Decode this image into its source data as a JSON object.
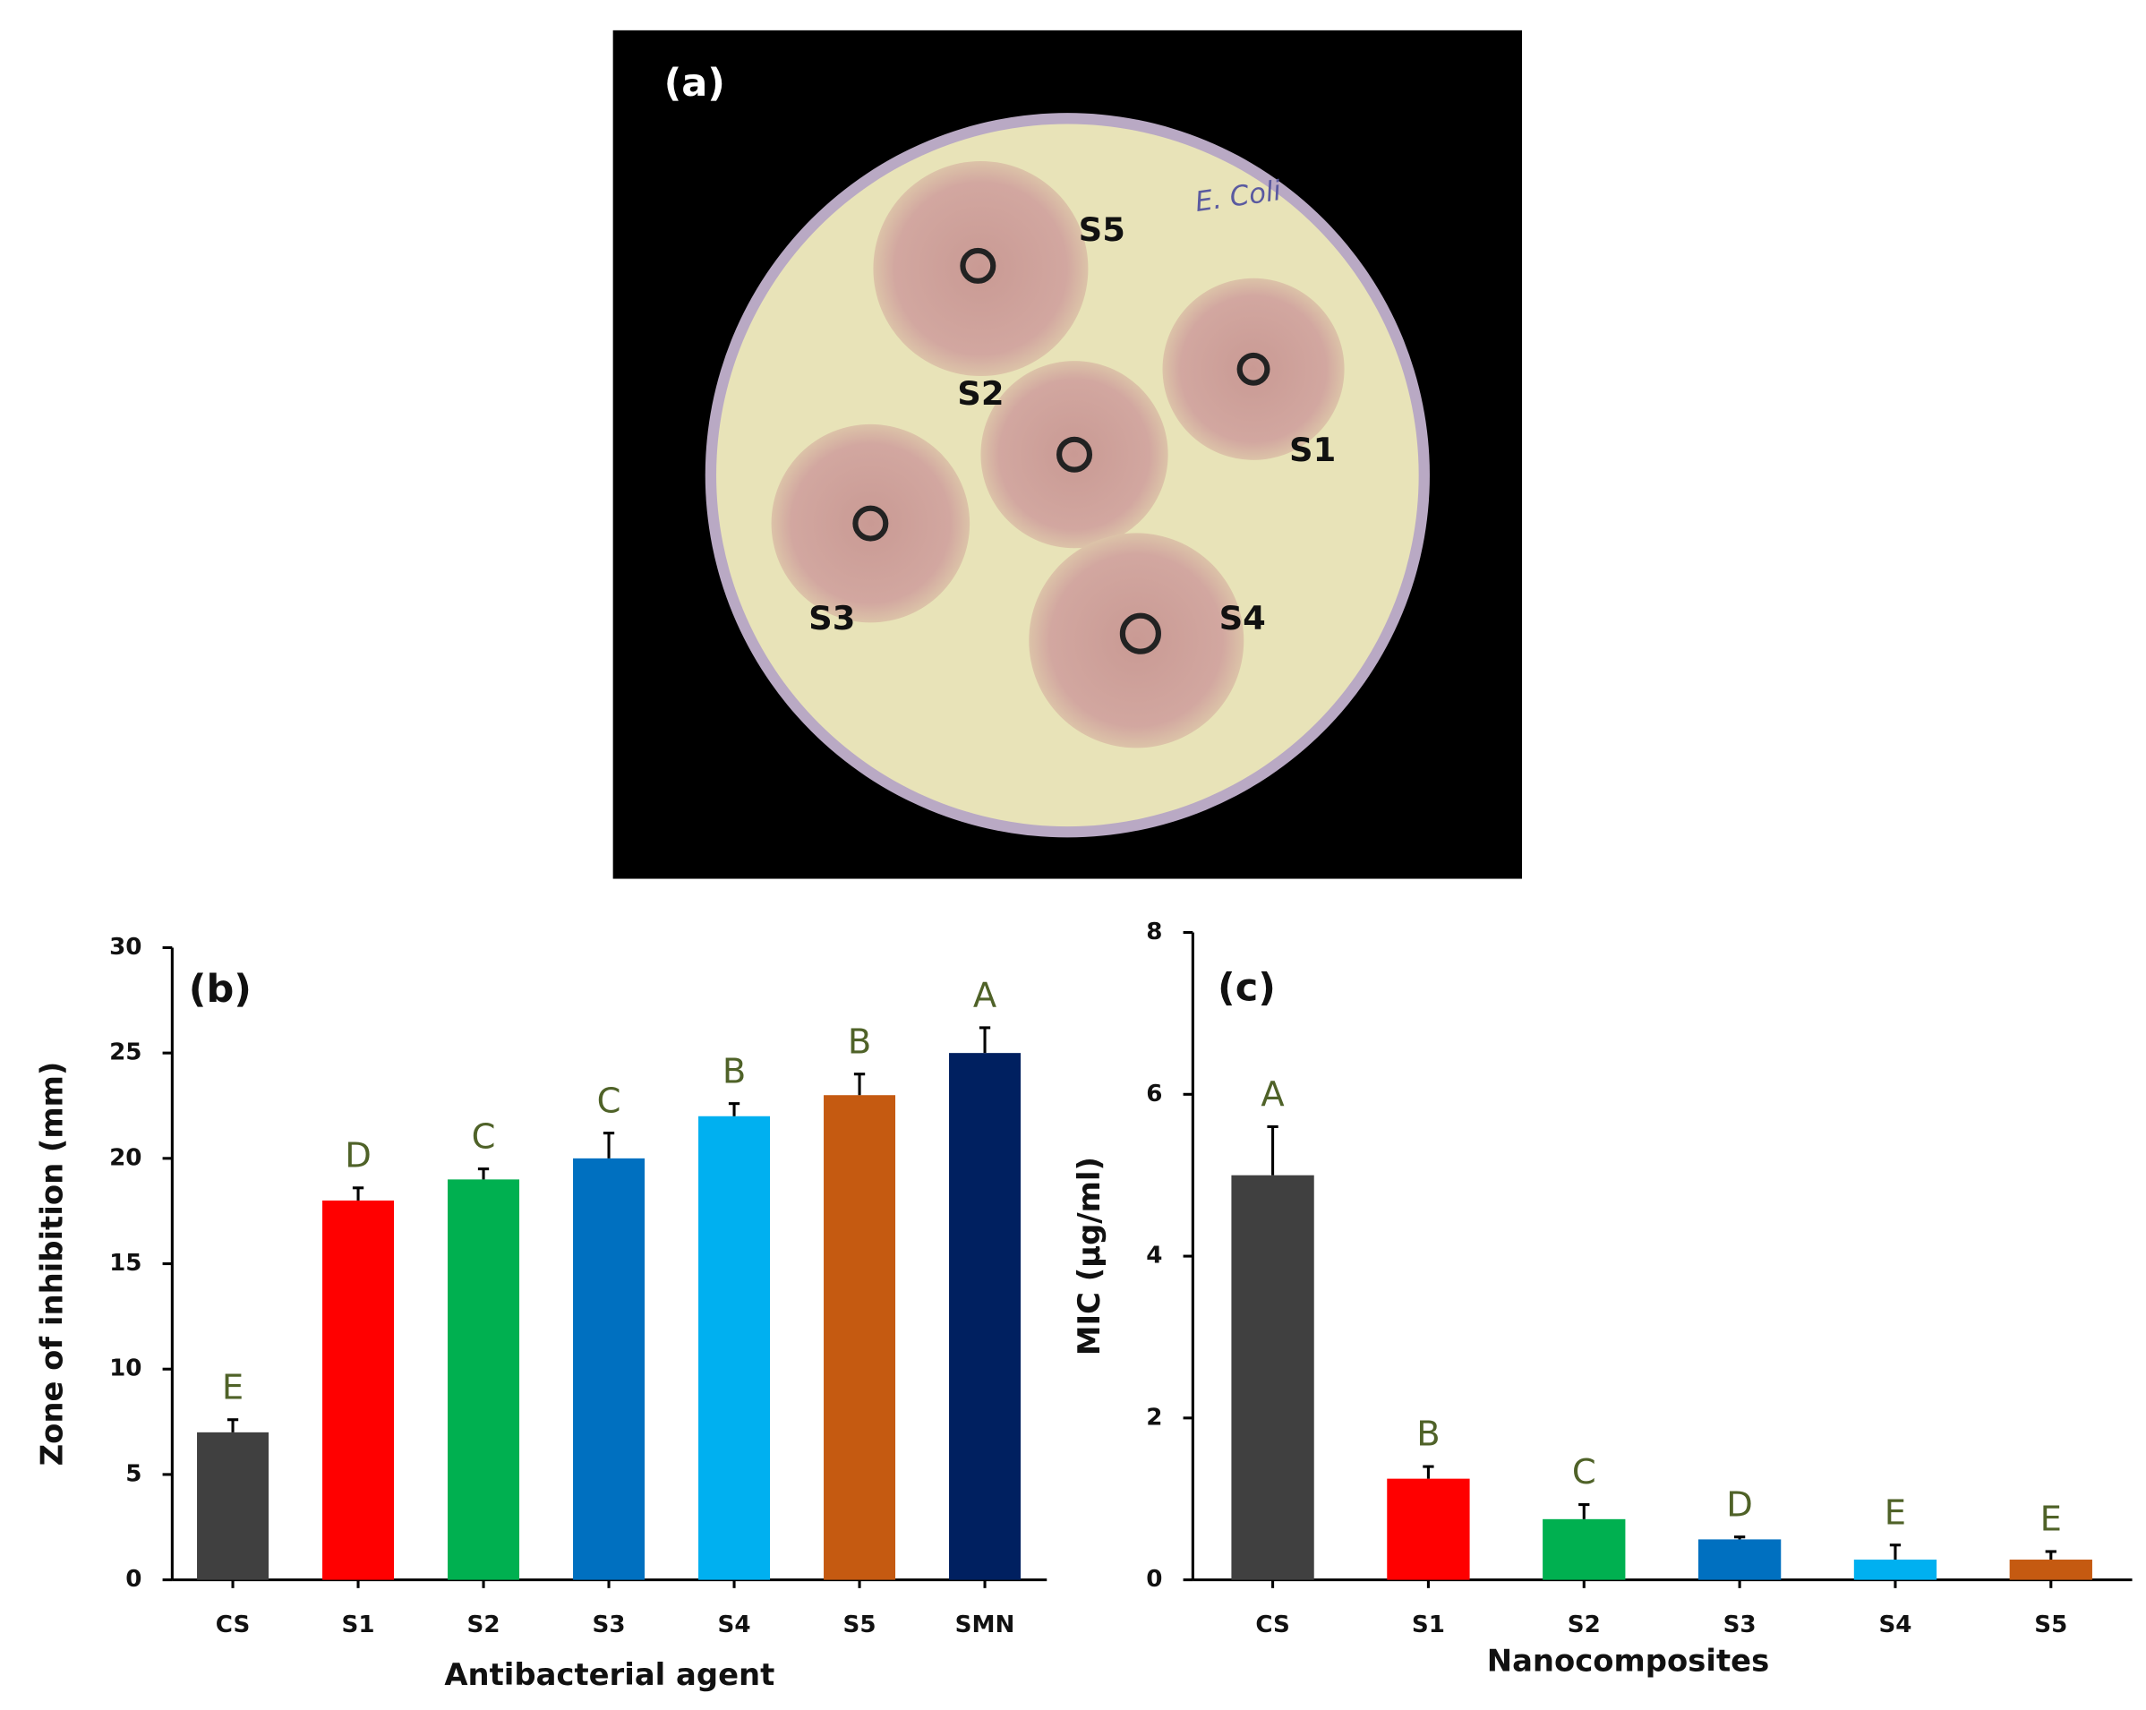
{
  "photo": {
    "panel_label": "(a)",
    "plate_label": "E. Coli",
    "well_labels": [
      "S5",
      "S2",
      "S1",
      "S3",
      "S4"
    ]
  },
  "chart_data": [
    {
      "type": "bar",
      "panel_label": "(b)",
      "x_label": "Antibacterial agent",
      "y_label": "Zone of inhibition (mm)",
      "categories": [
        "CS",
        "S1",
        "S2",
        "S3",
        "S4",
        "S5",
        "SMN"
      ],
      "values": [
        7,
        18,
        19,
        20,
        22,
        23,
        25
      ],
      "errors": [
        0.6,
        0.6,
        0.5,
        1.2,
        0.6,
        1.0,
        1.2
      ],
      "significance_labels": [
        "E",
        "D",
        "C",
        "C",
        "B",
        "B",
        "A"
      ],
      "colors": [
        "#404040",
        "#ff0000",
        "#00b050",
        "#0070c0",
        "#00b0f0",
        "#c55a11",
        "#002060"
      ],
      "ylim": [
        0,
        30
      ],
      "yticks": [
        0,
        5,
        10,
        15,
        20,
        25,
        30
      ]
    },
    {
      "type": "bar",
      "panel_label": "(c)",
      "x_label": "Nanocomposites",
      "y_label": "MIC (µg/ml)",
      "categories": [
        "CS",
        "S1",
        "S2",
        "S3",
        "S4",
        "S5"
      ],
      "values": [
        5,
        1.25,
        0.75,
        0.5,
        0.25,
        0.25
      ],
      "errors": [
        0.6,
        0.15,
        0.18,
        0.03,
        0.18,
        0.1
      ],
      "significance_labels": [
        "A",
        "B",
        "C",
        "D",
        "E",
        "E"
      ],
      "colors": [
        "#404040",
        "#ff0000",
        "#00b050",
        "#0070c0",
        "#00b0f0",
        "#c55a11"
      ],
      "ylim": [
        0,
        8
      ],
      "yticks": [
        0,
        2,
        4,
        6,
        8
      ]
    }
  ]
}
